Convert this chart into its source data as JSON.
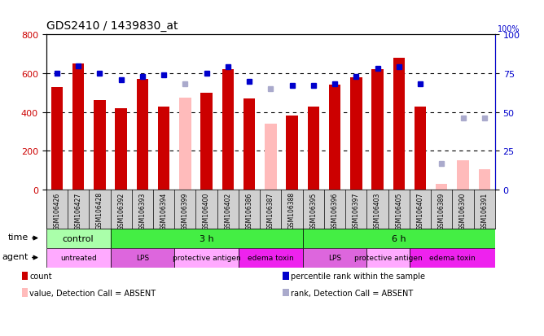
{
  "title": "GDS2410 / 1439830_at",
  "samples": [
    "GSM106426",
    "GSM106427",
    "GSM106428",
    "GSM106392",
    "GSM106393",
    "GSM106394",
    "GSM106399",
    "GSM106400",
    "GSM106402",
    "GSM106386",
    "GSM106387",
    "GSM106388",
    "GSM106395",
    "GSM106396",
    "GSM106397",
    "GSM106403",
    "GSM106405",
    "GSM106407",
    "GSM106389",
    "GSM106390",
    "GSM106391"
  ],
  "count_values": [
    530,
    650,
    460,
    420,
    570,
    430,
    null,
    500,
    620,
    470,
    null,
    380,
    430,
    540,
    580,
    620,
    680,
    430,
    null,
    null,
    null
  ],
  "absent_count_values": [
    null,
    null,
    null,
    null,
    null,
    null,
    475,
    null,
    null,
    null,
    340,
    null,
    null,
    null,
    null,
    null,
    null,
    null,
    30,
    150,
    105
  ],
  "rank_values": [
    75,
    80,
    75,
    71,
    73,
    74,
    null,
    75,
    79,
    70,
    null,
    67,
    67,
    68,
    73,
    78,
    79,
    68,
    null,
    null,
    null
  ],
  "absent_rank_values": [
    null,
    null,
    null,
    null,
    null,
    null,
    68,
    null,
    null,
    null,
    65,
    null,
    null,
    null,
    null,
    null,
    null,
    null,
    17,
    46,
    46
  ],
  "ylim_left": [
    0,
    800
  ],
  "ylim_right": [
    0,
    100
  ],
  "yticks_left": [
    0,
    200,
    400,
    600,
    800
  ],
  "yticks_right": [
    0,
    25,
    50,
    75,
    100
  ],
  "bar_color": "#cc0000",
  "absent_bar_color": "#ffbbbb",
  "rank_color": "#0000cc",
  "absent_rank_color": "#aaaacc",
  "time_groups": [
    {
      "label": "control",
      "start": 0,
      "end": 3,
      "color": "#aaffaa"
    },
    {
      "label": "3 h",
      "start": 3,
      "end": 12,
      "color": "#44ee44"
    },
    {
      "label": "6 h",
      "start": 12,
      "end": 21,
      "color": "#44ee44"
    }
  ],
  "agent_groups": [
    {
      "label": "untreated",
      "start": 0,
      "end": 3,
      "color": "#ffaaff"
    },
    {
      "label": "LPS",
      "start": 3,
      "end": 6,
      "color": "#dd66dd"
    },
    {
      "label": "protective antigen",
      "start": 6,
      "end": 9,
      "color": "#ffaaff"
    },
    {
      "label": "edema toxin",
      "start": 9,
      "end": 12,
      "color": "#ee22ee"
    },
    {
      "label": "LPS",
      "start": 12,
      "end": 15,
      "color": "#dd66dd"
    },
    {
      "label": "protective antigen",
      "start": 15,
      "end": 17,
      "color": "#ffaaff"
    },
    {
      "label": "edema toxin",
      "start": 17,
      "end": 21,
      "color": "#ee22ee"
    }
  ]
}
